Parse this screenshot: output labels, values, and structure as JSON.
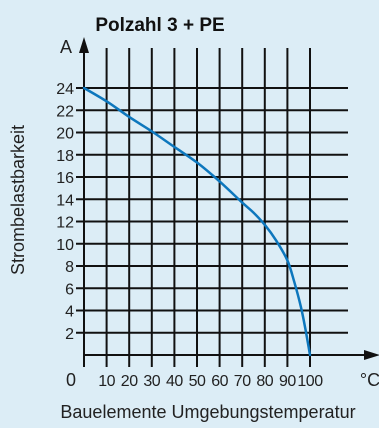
{
  "chart_data": {
    "type": "line",
    "title": "Polzahl 3 + PE",
    "xlabel": "Bauelemente Umgebungstemperatur",
    "ylabel": "Strombelastbarkeit",
    "x_unit": "°C",
    "y_unit": "A",
    "x_origin_label": "0",
    "xlim": [
      0,
      100
    ],
    "ylim": [
      0,
      24
    ],
    "x_ticks": [
      10,
      20,
      30,
      40,
      50,
      60,
      70,
      80,
      90,
      100
    ],
    "x_tick_labels": [
      "10",
      "20",
      "30",
      "40",
      "50",
      "60",
      "70",
      "80",
      "90",
      "100"
    ],
    "y_ticks": [
      2,
      4,
      6,
      8,
      10,
      12,
      14,
      16,
      18,
      20,
      22,
      24
    ],
    "y_tick_labels": [
      "2",
      "4",
      "6",
      "8",
      "10",
      "12",
      "14",
      "16",
      "18",
      "20",
      "22",
      "24"
    ],
    "grid": true,
    "line_color": "#0d77bd",
    "series": [
      {
        "x": [
          0,
          10,
          20,
          30,
          40,
          50,
          60,
          70,
          75,
          80,
          85,
          90,
          93,
          96,
          98,
          100
        ],
        "y": [
          24,
          22.8,
          21.4,
          20.1,
          18.7,
          17.3,
          15.6,
          13.7,
          12.8,
          11.7,
          10.3,
          8.5,
          6.6,
          4.3,
          2.3,
          0
        ]
      }
    ]
  }
}
